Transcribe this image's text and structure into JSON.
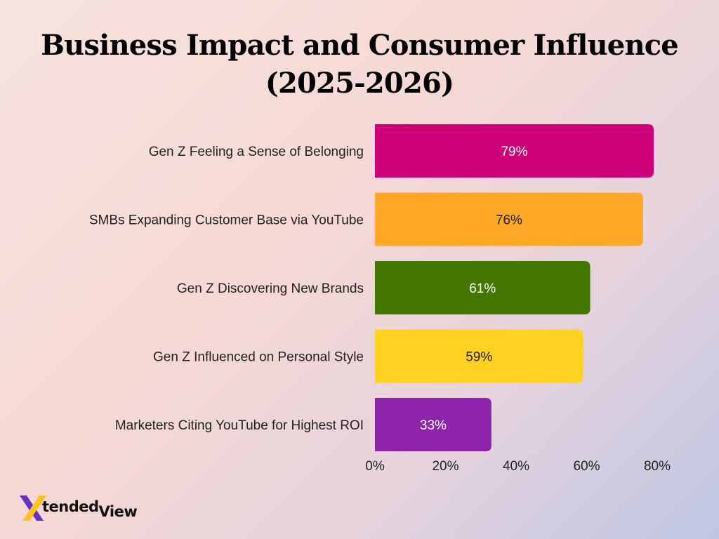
{
  "title_line1": "Business Impact and Consumer Influence",
  "title_line2": "(2025-2026)",
  "logo": {
    "mark": "X",
    "text": "tended",
    "text2": "View"
  },
  "chart_data": {
    "type": "bar",
    "orientation": "horizontal",
    "categories": [
      "Gen Z Feeling a Sense of Belonging",
      "SMBs Expanding Customer Base via YouTube",
      "Gen Z Discovering New Brands",
      "Gen Z Influenced on Personal Style",
      "Marketers Citing YouTube for Highest ROI"
    ],
    "values": [
      79,
      76,
      61,
      59,
      33
    ],
    "data_labels": [
      "79%",
      "76%",
      "61%",
      "59%",
      "33%"
    ],
    "colors": [
      "#cc0077",
      "#ffa726",
      "#447700",
      "#ffd121",
      "#8e24aa"
    ],
    "label_colors": [
      "#ffffff",
      "#222222",
      "#ffffff",
      "#222222",
      "#ffffff"
    ],
    "xlim": [
      0,
      80
    ],
    "xticks": [
      "0%",
      "20%",
      "40%",
      "60%",
      "80%"
    ],
    "xtick_values": [
      0,
      20,
      40,
      60,
      80
    ],
    "grid": false,
    "legend": "none"
  }
}
